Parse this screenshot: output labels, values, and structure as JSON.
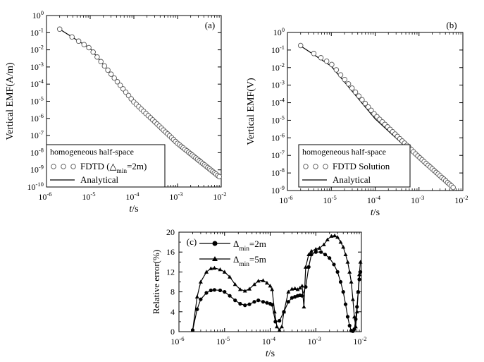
{
  "chart_data": [
    {
      "type": "line",
      "panel": "(a)",
      "xscale": "log",
      "yscale": "log",
      "xlim": [
        1e-06,
        0.01
      ],
      "ylim": [
        1e-10,
        1
      ],
      "xlabel": "t/s",
      "ylabel": "Vertical EMF(A/m)",
      "xtick_exponents": [
        "-6",
        "-5",
        "-4",
        "-3",
        "-2"
      ],
      "ytick_exponents": [
        "0",
        "-1",
        "-2",
        "-3",
        "-4",
        "-5",
        "-6",
        "-7",
        "-8",
        "-9",
        "-10"
      ],
      "legend": {
        "title": "homogeneous half-space",
        "entries": [
          {
            "name": "FDTD (",
            "sub_prefix": "△",
            "sub": "min",
            "suffix": "=2m)",
            "marker": "circle"
          },
          {
            "name": "Analytical",
            "marker": "line"
          }
        ]
      },
      "series": [
        {
          "name": "FDTD (△min=2m)",
          "style": "circles",
          "x": [
            2e-06,
            1e-05,
            0.0001,
            0.001,
            0.009
          ],
          "y": [
            0.16,
            0.012,
            9e-06,
            3.5e-08,
            4e-10
          ]
        },
        {
          "name": "Analytical",
          "style": "line",
          "x": [
            2e-06,
            1e-05,
            0.0001,
            0.001,
            0.009
          ],
          "y": [
            0.16,
            0.012,
            9e-06,
            3.5e-08,
            4e-10
          ]
        }
      ]
    },
    {
      "type": "line",
      "panel": "(b)",
      "xscale": "log",
      "yscale": "log",
      "xlim": [
        1e-06,
        0.01
      ],
      "ylim": [
        1e-09,
        1
      ],
      "xlabel": "t/s",
      "ylabel": "Vertical EMF(V)",
      "xtick_exponents": [
        "-6",
        "-5",
        "-4",
        "-3",
        "-2"
      ],
      "ytick_exponents": [
        "0",
        "-1",
        "-2",
        "-3",
        "-4",
        "-5",
        "-6",
        "-7",
        "-8",
        "-9"
      ],
      "legend": {
        "title": "homogeneous half-space",
        "entries": [
          {
            "name": "FDTD Solution",
            "marker": "circle"
          },
          {
            "name": "Analytical",
            "marker": "line"
          }
        ]
      },
      "series": [
        {
          "name": "FDTD Solution",
          "style": "circles",
          "x": [
            2e-06,
            1e-05,
            0.0001,
            0.001,
            0.006
          ],
          "y": [
            0.18,
            0.016,
            2e-05,
            8e-08,
            1.5e-09
          ]
        },
        {
          "name": "Analytical",
          "style": "line",
          "x": [
            2e-06,
            1e-05,
            0.0001,
            0.001,
            0.006
          ],
          "y": [
            0.17,
            0.012,
            1.2e-05,
            6e-08,
            1.6e-09
          ]
        }
      ]
    },
    {
      "type": "line",
      "panel": "(c)",
      "xscale": "log",
      "yscale": "linear",
      "xlim": [
        1e-06,
        0.01
      ],
      "ylim": [
        0,
        20
      ],
      "xlabel": "t/s",
      "ylabel": "Relative error(%)",
      "xtick_exponents": [
        "-6",
        "-5",
        "-4",
        "-3",
        "-2"
      ],
      "yticks": [
        0,
        4,
        8,
        12,
        16,
        20
      ],
      "legend": {
        "entries": [
          {
            "name": "Δ",
            "sub": "min",
            "suffix": "=2m",
            "marker": "filled-circle"
          },
          {
            "name": "Δ",
            "sub": "min",
            "suffix": "=5m",
            "marker": "filled-triangle"
          }
        ]
      },
      "series": [
        {
          "name": "Δmin=2m",
          "marker": "circle",
          "x": [
            2e-06,
            2.5e-06,
            3e-06,
            4e-06,
            5e-06,
            6e-06,
            8e-06,
            1e-05,
            1.3e-05,
            1.7e-05,
            2.2e-05,
            2.8e-05,
            3.5e-05,
            4.5e-05,
            5.5e-05,
            7e-05,
            8.5e-05,
            0.0001,
            0.00011,
            0.00013,
            0.00016,
            0.0002,
            0.00025,
            0.0003,
            0.00035,
            0.0004,
            0.00045,
            0.0005,
            0.0006,
            0.0007,
            0.0008,
            0.001,
            0.0013,
            0.0016,
            0.002,
            0.0025,
            0.003,
            0.0035,
            0.004,
            0.0045,
            0.005,
            0.0055,
            0.006,
            0.0065,
            0.007,
            0.0075,
            0.008,
            0.0085,
            0.009,
            0.0095
          ],
          "y": [
            0.3,
            4.5,
            6.5,
            7.8,
            8.3,
            8.4,
            8.3,
            8.0,
            7.2,
            6.3,
            5.6,
            5.3,
            5.5,
            6.0,
            6.3,
            6.0,
            5.8,
            5.6,
            5.4,
            2.0,
            2.2,
            4.0,
            6.0,
            6.8,
            7.0,
            7.2,
            7.3,
            7.2,
            9.0,
            13.0,
            15.5,
            16.0,
            16.0,
            15.5,
            14.8,
            13.5,
            12.0,
            10.0,
            8.0,
            5.5,
            3.0,
            1.2,
            0.2,
            0.1,
            0.5,
            2.5,
            5.0,
            8.0,
            10.5,
            12.0
          ]
        },
        {
          "name": "Δmin=5m",
          "marker": "triangle",
          "x": [
            2e-06,
            2.5e-06,
            3e-06,
            4e-06,
            5e-06,
            6e-06,
            8e-06,
            1e-05,
            1.3e-05,
            1.7e-05,
            2.2e-05,
            2.8e-05,
            3.5e-05,
            4.5e-05,
            5.5e-05,
            7e-05,
            8.5e-05,
            0.0001,
            0.00011,
            0.000125,
            0.00014,
            0.00016,
            0.00018,
            0.0002,
            0.00025,
            0.0003,
            0.00035,
            0.0004,
            0.00045,
            0.0005,
            0.00055,
            0.0006,
            0.0007,
            0.0008,
            0.001,
            0.0012,
            0.0015,
            0.0018,
            0.0022,
            0.0026,
            0.003,
            0.0035,
            0.004,
            0.0045,
            0.005,
            0.0055,
            0.006,
            0.0065,
            0.007,
            0.0075,
            0.008,
            0.0085,
            0.009,
            0.0095
          ],
          "y": [
            0.3,
            7.0,
            10.0,
            12.0,
            12.7,
            12.8,
            12.5,
            12.0,
            11.0,
            9.5,
            8.5,
            8.2,
            8.6,
            9.5,
            10.2,
            10.3,
            9.8,
            9.2,
            8.5,
            4.0,
            1.0,
            0.3,
            1.0,
            4.0,
            8.0,
            8.6,
            8.7,
            8.5,
            8.8,
            9.2,
            5.0,
            13.0,
            15.5,
            16.2,
            16.6,
            16.8,
            17.5,
            18.5,
            19.2,
            19.3,
            19.0,
            18.0,
            17.0,
            15.5,
            14.0,
            12.0,
            10.0,
            6.5,
            3.0,
            1.0,
            4.0,
            8.0,
            11.5,
            14.0
          ]
        }
      ]
    }
  ]
}
